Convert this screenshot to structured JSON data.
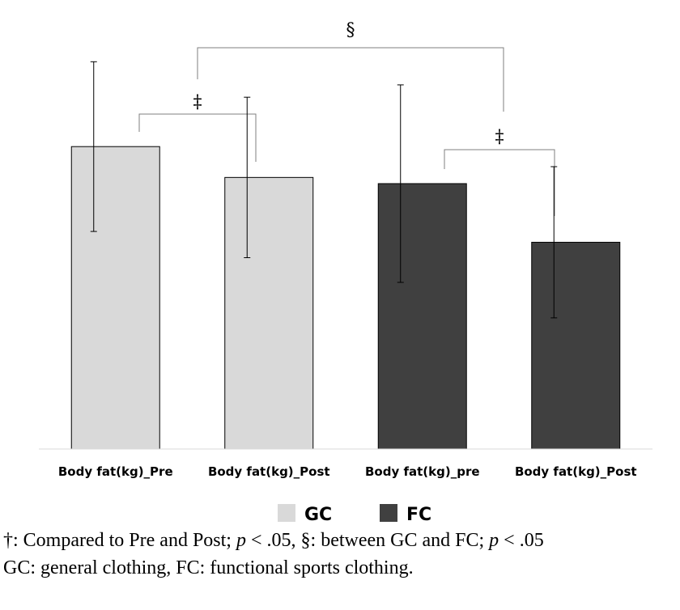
{
  "chart_data": {
    "type": "bar",
    "categories": [
      "Body fat(kg)_Pre",
      "Body fat(kg)_Post",
      "Body fat(kg)_pre",
      "Body fat(kg)_Post"
    ],
    "values": [
      19.6,
      17.6,
      17.2,
      13.4
    ],
    "error": [
      5.5,
      5.2,
      6.4,
      4.9
    ],
    "bar_colors": [
      "#d9d9d9",
      "#d9d9d9",
      "#404040",
      "#404040"
    ],
    "ylim": [
      0,
      28
    ],
    "grid": false,
    "legend": {
      "position": "bottom",
      "entries": [
        {
          "label": "GC",
          "color": "#d9d9d9"
        },
        {
          "label": "FC",
          "color": "#404040"
        }
      ]
    },
    "annotations": [
      {
        "symbol": "§",
        "from": 0,
        "to": 2
      },
      {
        "symbol": "‡",
        "from": 0,
        "to": 1
      },
      {
        "symbol": "‡",
        "from": 2,
        "to": 3
      }
    ]
  },
  "footnote": {
    "line1_sym1": "†",
    "line1_a": ": Compared to Pre and Post; ",
    "line1_p1": "p",
    "line1_b": " < .05, §: between GC and FC; ",
    "line1_p2": "p",
    "line1_c": " < .05",
    "line2": "GC: general clothing, FC: functional sports clothing."
  }
}
